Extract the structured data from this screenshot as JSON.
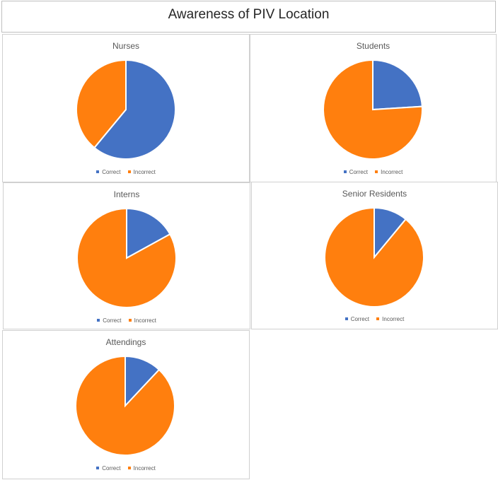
{
  "title": "Awareness of PIV Location",
  "colors": {
    "correct": "#4472C4",
    "incorrect": "#FF7F0E"
  },
  "chart_data": [
    {
      "type": "pie",
      "title": "Nurses",
      "categories": [
        "Correct",
        "Incorrect"
      ],
      "values": [
        61,
        39
      ],
      "legend": "bottom"
    },
    {
      "type": "pie",
      "title": "Students",
      "categories": [
        "Correct",
        "Incorrect"
      ],
      "values": [
        24,
        76
      ],
      "legend": "bottom"
    },
    {
      "type": "pie",
      "title": "Interns",
      "categories": [
        "Correct",
        "Incorrect"
      ],
      "values": [
        17,
        83
      ],
      "legend": "bottom"
    },
    {
      "type": "pie",
      "title": "Senior Residents",
      "categories": [
        "Correct",
        "Incorrect"
      ],
      "values": [
        11,
        89
      ],
      "legend": "bottom"
    },
    {
      "type": "pie",
      "title": "Attendings",
      "categories": [
        "Correct",
        "Incorrect"
      ],
      "values": [
        12,
        88
      ],
      "legend": "bottom"
    }
  ]
}
